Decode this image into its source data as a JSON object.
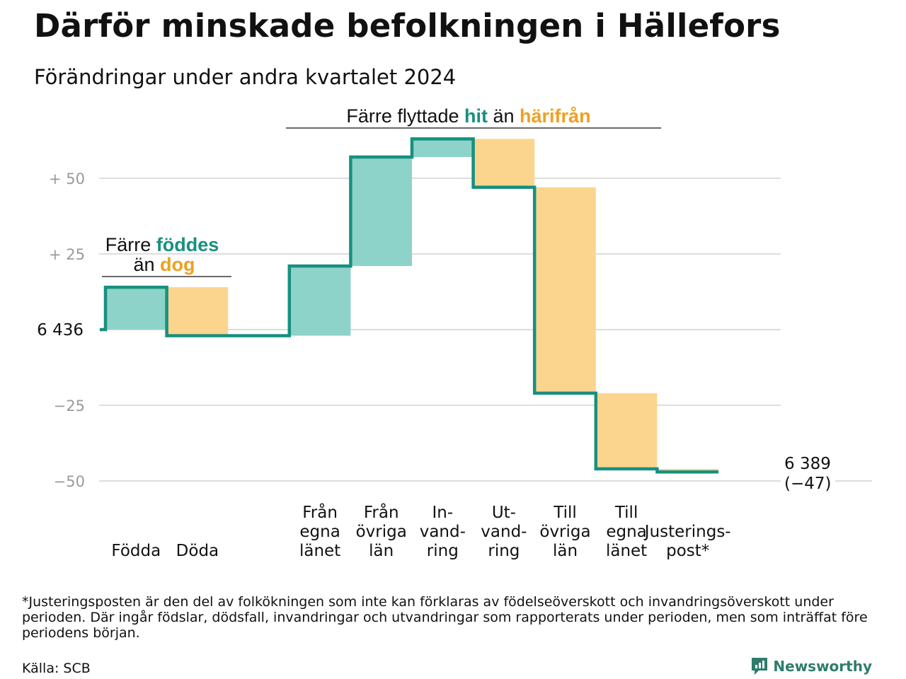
{
  "title": "Därför minskade befolkningen i Hällefors",
  "subtitle": "Förändringar under andra kvartalet 2024",
  "chart_data": {
    "type": "waterfall",
    "start_value": 6436,
    "start_label": "6 436",
    "end_value": 6389,
    "end_label": "6 389",
    "end_change_label": "(−47)",
    "y_ticks": [
      {
        "value": 50,
        "label": "+  50"
      },
      {
        "value": 25,
        "label": "+  25"
      },
      {
        "value": -25,
        "label": "−25"
      },
      {
        "value": -50,
        "label": "−50"
      }
    ],
    "ylim": [
      -50,
      62
    ],
    "grid": true,
    "steps": [
      {
        "category": "Födda",
        "label_lines": [
          "Födda"
        ],
        "change": 14,
        "kind": "in"
      },
      {
        "category": "Döda",
        "label_lines": [
          "Döda"
        ],
        "change": -16,
        "kind": "out"
      },
      {
        "category": "",
        "label_lines": [],
        "change": 0,
        "kind": "none"
      },
      {
        "category": "Från egna länet",
        "label_lines": [
          "Från",
          "egna",
          "länet"
        ],
        "change": 23,
        "kind": "in"
      },
      {
        "category": "Från övriga län",
        "label_lines": [
          "Från",
          "övriga",
          "län"
        ],
        "change": 36,
        "kind": "in"
      },
      {
        "category": "In-vand-ring",
        "label_lines": [
          "In-",
          "vand-",
          "ring"
        ],
        "change": 6,
        "kind": "in"
      },
      {
        "category": "Ut-vand-ring",
        "label_lines": [
          "Ut-",
          "vand-",
          "ring"
        ],
        "change": -16,
        "kind": "out"
      },
      {
        "category": "Till övriga län",
        "label_lines": [
          "Till",
          "övriga",
          "län"
        ],
        "change": -68,
        "kind": "out"
      },
      {
        "category": "Till egna länet",
        "label_lines": [
          "Till",
          "egna",
          "länet"
        ],
        "change": -25,
        "kind": "out"
      },
      {
        "category": "Justerings-post*",
        "label_lines": [
          "Justerings-",
          "post*"
        ],
        "change": -1,
        "kind": "out"
      }
    ],
    "annotations": [
      {
        "parts": [
          {
            "text": "Färre ",
            "style": "normal"
          },
          {
            "text": "föddes",
            "style": "in"
          }
        ],
        "parts2": [
          {
            "text": "än ",
            "style": "normal"
          },
          {
            "text": "dog",
            "style": "out"
          }
        ]
      },
      {
        "parts": [
          {
            "text": "Färre flyttade ",
            "style": "normal"
          },
          {
            "text": "hit",
            "style": "in"
          },
          {
            "text": " än ",
            "style": "normal"
          },
          {
            "text": "härifrån",
            "style": "out"
          }
        ]
      }
    ],
    "colors": {
      "in": "#8dd3c9",
      "out": "#fbd58e",
      "line": "#17907f",
      "grid": "#dddddd"
    }
  },
  "footnote": "*Justeringsposten är den del av folkökningen som inte kan förklaras av födelseöverskott och invandringsöverskott under perioden. Där ingår födslar, dödsfall, invandringar och utvandringar som rapporterats under perioden, men som inträffat före periodens början.",
  "source": "Källa: SCB",
  "brand": "Newsworthy"
}
